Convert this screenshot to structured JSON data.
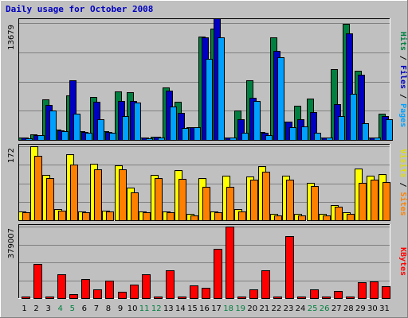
{
  "chart_data": {
    "title": "Daily usage for October 2008",
    "type": "bar",
    "x": [
      "1",
      "2",
      "3",
      "4",
      "5",
      "6",
      "7",
      "8",
      "9",
      "10",
      "11",
      "12",
      "13",
      "14",
      "15",
      "16",
      "17",
      "18",
      "19",
      "20",
      "21",
      "22",
      "23",
      "24",
      "25",
      "26",
      "27",
      "28",
      "29",
      "30",
      "31"
    ],
    "weekend_days": [
      "4",
      "5",
      "11",
      "12",
      "18",
      "19",
      "25",
      "26"
    ],
    "panels": [
      {
        "id": "pfh",
        "ymax": 13679,
        "ytick": "13679",
        "right_labels": [
          {
            "text": "Hits",
            "color": "#008040"
          },
          {
            "text": " / ",
            "color": "#000000"
          },
          {
            "text": "Files",
            "color": "#0000c0"
          },
          {
            "text": " / ",
            "color": "#000000"
          },
          {
            "text": "Pages",
            "color": "#00a0ff"
          }
        ],
        "series": [
          {
            "name": "Hits",
            "color": "#008040",
            "values": [
              300,
              650,
              4700,
              1200,
              5200,
              1000,
              5000,
              1000,
              5700,
              5600,
              270,
              400,
              6100,
              4500,
              1500,
              12100,
              13000,
              290,
              3400,
              7000,
              900,
              12000,
              2100,
              4000,
              4800,
              300,
              8300,
              13600,
              8100,
              270,
              3100
            ]
          },
          {
            "name": "Files",
            "color": "#0000c0",
            "values": [
              250,
              600,
              4100,
              1100,
              7000,
              900,
              4500,
              950,
              4600,
              4600,
              250,
              350,
              5800,
              3200,
              1500,
              12000,
              14200,
              270,
              2400,
              4900,
              800,
              10400,
              2100,
              2400,
              3300,
              300,
              4200,
              12500,
              7600,
              260,
              2800
            ]
          },
          {
            "name": "Pages",
            "color": "#00a0ff",
            "values": [
              200,
              600,
              3400,
              1000,
              3100,
              800,
              2400,
              850,
              2800,
              4400,
              230,
              310,
              3900,
              1400,
              1500,
              9500,
              12000,
              250,
              800,
              4600,
              580,
              9700,
              1500,
              1600,
              800,
              280,
              2800,
              5400,
              2000,
              250,
              2400
            ]
          }
        ]
      },
      {
        "id": "vs",
        "ymax": 172,
        "ytick": "172",
        "right_labels": [
          {
            "text": "Visits",
            "color": "#e0e000"
          },
          {
            "text": " / ",
            "color": "#000000"
          },
          {
            "text": "Sites",
            "color": "#ff8000"
          }
        ],
        "series": [
          {
            "name": "Visits",
            "color": "#ffff00",
            "values": [
              20,
              172,
              105,
              25,
              154,
              20,
              132,
              22,
              128,
              75,
              20,
              105,
              20,
              116,
              15,
              98,
              20,
              104,
              25,
              101,
              126,
              15,
              104,
              15,
              87,
              15,
              35,
              18,
              120,
              104,
              108
            ]
          },
          {
            "name": "Sites",
            "color": "#ff8000",
            "values": [
              18,
              150,
              98,
              22,
              130,
              18,
              118,
              20,
              119,
              65,
              18,
              98,
              18,
              96,
              12,
              78,
              18,
              78,
              20,
              95,
              112,
              12,
              94,
              12,
              80,
              12,
              32,
              15,
              86,
              94,
              88
            ]
          }
        ]
      },
      {
        "id": "kb",
        "ymax": 379007,
        "ytick": "379007",
        "right_labels": [
          {
            "text": "KBytes",
            "color": "#ff0000"
          }
        ],
        "series": [
          {
            "name": "KBytes",
            "color": "#ff0000",
            "values": [
              5000,
              180000,
              10000,
              125000,
              20000,
              100000,
              47000,
              92000,
              35000,
              70000,
              125000,
              10000,
              147000,
              10000,
              66000,
              55000,
              260000,
              379000,
              5000,
              47000,
              147000,
              8000,
              330000,
              5000,
              46000,
              5000,
              38000,
              5000,
              85000,
              90000,
              65000
            ]
          }
        ]
      }
    ]
  }
}
